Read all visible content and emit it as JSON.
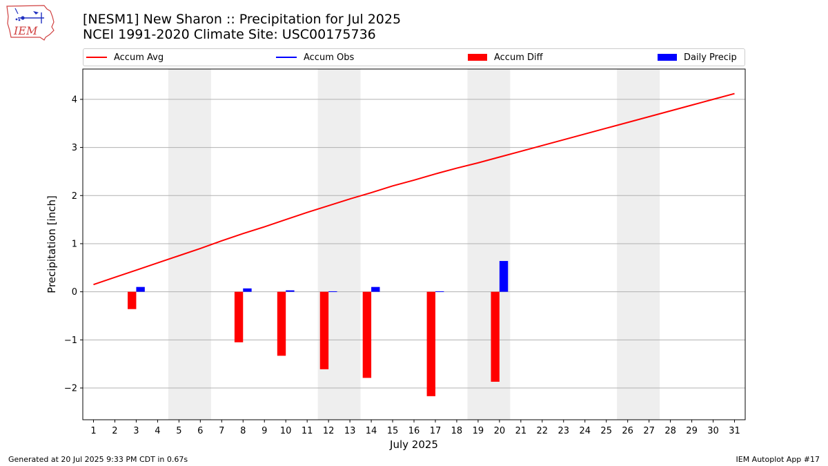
{
  "logo": {
    "text": "IEM"
  },
  "title_line1": "[NESM1] New Sharon :: Precipitation for Jul 2025",
  "title_line2": "NCEI 1991-2020 Climate Site: USC00175736",
  "legend": [
    {
      "label": "Accum Avg",
      "kind": "line",
      "color": "#ff0000"
    },
    {
      "label": "Accum Obs",
      "kind": "line",
      "color": "#0000ff"
    },
    {
      "label": "Accum Diff",
      "kind": "box",
      "color": "#ff0000"
    },
    {
      "label": "Daily Precip",
      "kind": "box",
      "color": "#0000ff"
    }
  ],
  "footer_left": "Generated at 20 Jul 2025 9:33 PM CDT in 0.67s",
  "footer_right": "IEM Autoplot App #17",
  "chart_data": {
    "type": "bar",
    "title": "[NESM1] New Sharon :: Precipitation for Jul 2025",
    "xlabel": "July 2025",
    "ylabel": "Precipitation [inch]",
    "ylim": [
      -2.66,
      4.63
    ],
    "yticks": [
      -2,
      -1,
      0,
      1,
      2,
      3,
      4
    ],
    "ytick_labels": [
      "−2",
      "−1",
      "0",
      "1",
      "2",
      "3",
      "4"
    ],
    "grid": true,
    "days": [
      1,
      2,
      3,
      4,
      5,
      6,
      7,
      8,
      9,
      10,
      11,
      12,
      13,
      14,
      15,
      16,
      17,
      18,
      19,
      20,
      21,
      22,
      23,
      24,
      25,
      26,
      27,
      28,
      29,
      30,
      31
    ],
    "weekend_spans": [
      [
        5,
        6
      ],
      [
        12,
        13
      ],
      [
        19,
        20
      ],
      [
        26,
        27
      ]
    ],
    "accum_avg": {
      "name": "Accum Avg",
      "color": "#ff0000",
      "values": [
        0.15,
        0.3,
        0.45,
        0.6,
        0.75,
        0.9,
        1.06,
        1.21,
        1.35,
        1.5,
        1.65,
        1.79,
        1.93,
        2.06,
        2.2,
        2.32,
        2.45,
        2.57,
        2.68,
        2.8,
        2.92,
        3.04,
        3.16,
        3.28,
        3.4,
        3.52,
        3.64,
        3.76,
        3.88,
        4.0,
        4.12
      ]
    },
    "accum_diff": {
      "name": "Accum Diff",
      "color": "#ff0000",
      "points": [
        {
          "day": 3,
          "value": -0.36
        },
        {
          "day": 8,
          "value": -1.05
        },
        {
          "day": 10,
          "value": -1.33
        },
        {
          "day": 12,
          "value": -1.61
        },
        {
          "day": 14,
          "value": -1.79
        },
        {
          "day": 17,
          "value": -2.17
        },
        {
          "day": 20,
          "value": -1.87
        }
      ]
    },
    "daily_precip": {
      "name": "Daily Precip",
      "color": "#0000ff",
      "points": [
        {
          "day": 3,
          "value": 0.1
        },
        {
          "day": 8,
          "value": 0.07
        },
        {
          "day": 10,
          "value": 0.03
        },
        {
          "day": 12,
          "value": 0.01
        },
        {
          "day": 14,
          "value": 0.1
        },
        {
          "day": 17,
          "value": 0.01
        },
        {
          "day": 20,
          "value": 0.64
        }
      ]
    }
  }
}
